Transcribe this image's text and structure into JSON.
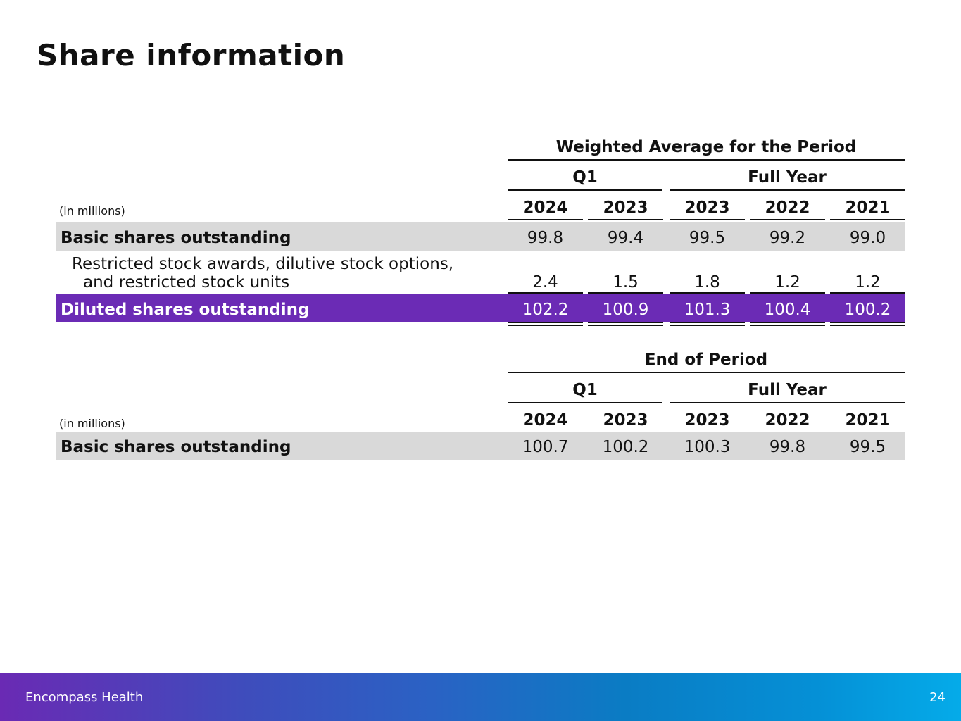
{
  "title": "Share information",
  "weighted": {
    "heading": "Weighted Average for the Period",
    "group_q1": "Q1",
    "group_fy": "Full Year",
    "units": "(in millions)",
    "years": [
      "2024",
      "2023",
      "2023",
      "2022",
      "2021"
    ],
    "rows": [
      {
        "label": "Basic shares outstanding",
        "values": [
          "99.8",
          "99.4",
          "99.5",
          "99.2",
          "99.0"
        ]
      },
      {
        "label_line1": "Restricted stock awards, dilutive stock options,",
        "label_line2": "and restricted stock units",
        "values": [
          "2.4",
          "1.5",
          "1.8",
          "1.2",
          "1.2"
        ]
      },
      {
        "label": "Diluted shares outstanding",
        "values": [
          "102.2",
          "100.9",
          "101.3",
          "100.4",
          "100.2"
        ]
      }
    ]
  },
  "end_of_period": {
    "heading": "End of Period",
    "group_q1": "Q1",
    "group_fy": "Full Year",
    "units": "(in millions)",
    "years": [
      "2024",
      "2023",
      "2023",
      "2022",
      "2021"
    ],
    "rows": [
      {
        "label": "Basic shares outstanding",
        "values": [
          "100.7",
          "100.2",
          "100.3",
          "99.8",
          "99.5"
        ]
      }
    ]
  },
  "footer": {
    "brand": "Encompass Health",
    "page_number": "24"
  },
  "colors": {
    "highlight_row": "#6b2bb5",
    "shaded_row": "#d9d9d9",
    "footer_gradient_start": "#6a2ab4",
    "footer_gradient_end": "#05abe9"
  }
}
